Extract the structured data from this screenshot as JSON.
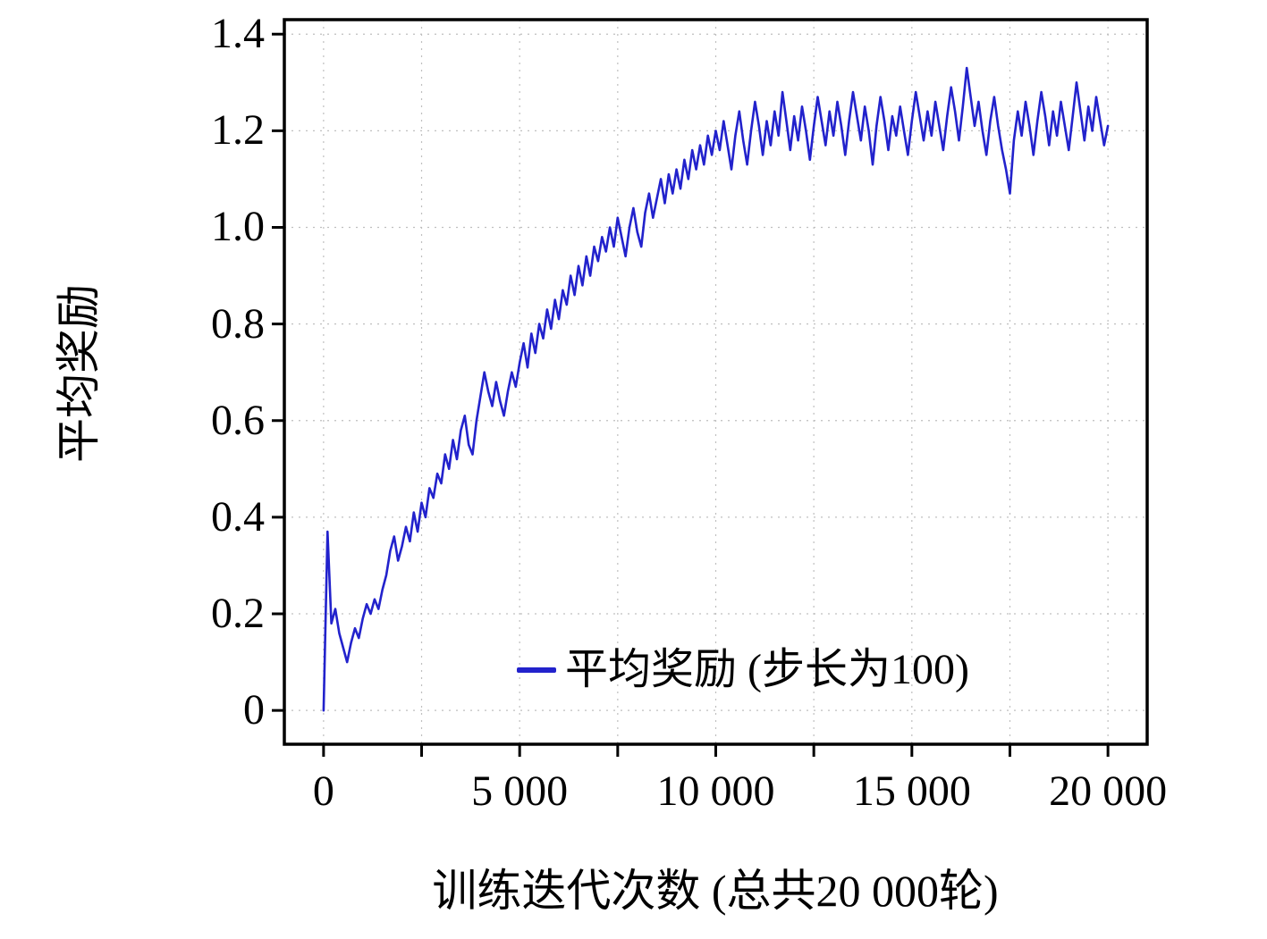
{
  "colors": {
    "line": "#2222CC",
    "grid": "#bfbfbf",
    "axis": "#000000",
    "background": "#ffffff",
    "text": "#000000"
  },
  "chart_data": {
    "type": "line",
    "title": "",
    "xlabel": "训练迭代次数 (总共20 000轮)",
    "ylabel": "平均奖励",
    "xlim": [
      -1000,
      21000
    ],
    "ylim": [
      -0.07,
      1.43
    ],
    "grid": true,
    "legend": {
      "position": "lower right",
      "label": "平均奖励 (步长为100)"
    },
    "xticks": [
      {
        "v": 0,
        "label": "0"
      },
      {
        "v": 5000,
        "label": "5 000"
      },
      {
        "v": 10000,
        "label": "10 000"
      },
      {
        "v": 15000,
        "label": "15 000"
      },
      {
        "v": 20000,
        "label": "20 000"
      }
    ],
    "xticks_minor": [
      2500,
      7500,
      12500,
      17500
    ],
    "yticks": [
      {
        "v": 0,
        "label": "0"
      },
      {
        "v": 0.2,
        "label": "0.2"
      },
      {
        "v": 0.4,
        "label": "0.4"
      },
      {
        "v": 0.6,
        "label": "0.6"
      },
      {
        "v": 0.8,
        "label": "0.8"
      },
      {
        "v": 1.0,
        "label": "1.0"
      },
      {
        "v": 1.2,
        "label": "1.2"
      },
      {
        "v": 1.4,
        "label": "1.4"
      }
    ],
    "series": [
      {
        "name": "平均奖励 (步长为100)",
        "color": "#2222CC",
        "x_start": 0,
        "x_step": 100,
        "x_end": 20000,
        "y": [
          0.0,
          0.37,
          0.18,
          0.21,
          0.16,
          0.13,
          0.1,
          0.14,
          0.17,
          0.15,
          0.19,
          0.22,
          0.2,
          0.23,
          0.21,
          0.25,
          0.28,
          0.33,
          0.36,
          0.31,
          0.34,
          0.38,
          0.35,
          0.41,
          0.37,
          0.43,
          0.4,
          0.46,
          0.44,
          0.49,
          0.47,
          0.53,
          0.5,
          0.56,
          0.52,
          0.58,
          0.61,
          0.55,
          0.53,
          0.6,
          0.65,
          0.7,
          0.66,
          0.63,
          0.68,
          0.64,
          0.61,
          0.66,
          0.7,
          0.67,
          0.72,
          0.76,
          0.71,
          0.78,
          0.74,
          0.8,
          0.77,
          0.83,
          0.79,
          0.85,
          0.81,
          0.87,
          0.84,
          0.9,
          0.86,
          0.92,
          0.88,
          0.94,
          0.9,
          0.96,
          0.93,
          0.98,
          0.95,
          1.0,
          0.96,
          1.02,
          0.98,
          0.94,
          1.0,
          1.04,
          0.99,
          0.96,
          1.03,
          1.07,
          1.02,
          1.06,
          1.1,
          1.05,
          1.11,
          1.07,
          1.12,
          1.08,
          1.14,
          1.1,
          1.16,
          1.12,
          1.17,
          1.13,
          1.19,
          1.15,
          1.2,
          1.16,
          1.22,
          1.17,
          1.12,
          1.19,
          1.24,
          1.18,
          1.13,
          1.2,
          1.26,
          1.21,
          1.15,
          1.22,
          1.17,
          1.24,
          1.19,
          1.28,
          1.22,
          1.16,
          1.23,
          1.18,
          1.25,
          1.2,
          1.14,
          1.21,
          1.27,
          1.22,
          1.17,
          1.24,
          1.19,
          1.26,
          1.21,
          1.15,
          1.22,
          1.28,
          1.23,
          1.18,
          1.25,
          1.2,
          1.13,
          1.21,
          1.27,
          1.22,
          1.16,
          1.23,
          1.19,
          1.25,
          1.2,
          1.15,
          1.22,
          1.28,
          1.23,
          1.18,
          1.24,
          1.19,
          1.26,
          1.21,
          1.16,
          1.23,
          1.29,
          1.24,
          1.18,
          1.25,
          1.33,
          1.27,
          1.21,
          1.26,
          1.2,
          1.15,
          1.22,
          1.27,
          1.21,
          1.16,
          1.12,
          1.07,
          1.18,
          1.24,
          1.19,
          1.26,
          1.21,
          1.15,
          1.22,
          1.28,
          1.23,
          1.17,
          1.24,
          1.19,
          1.26,
          1.21,
          1.16,
          1.23,
          1.3,
          1.24,
          1.18,
          1.25,
          1.2,
          1.27,
          1.22,
          1.17,
          1.21
        ]
      }
    ]
  }
}
